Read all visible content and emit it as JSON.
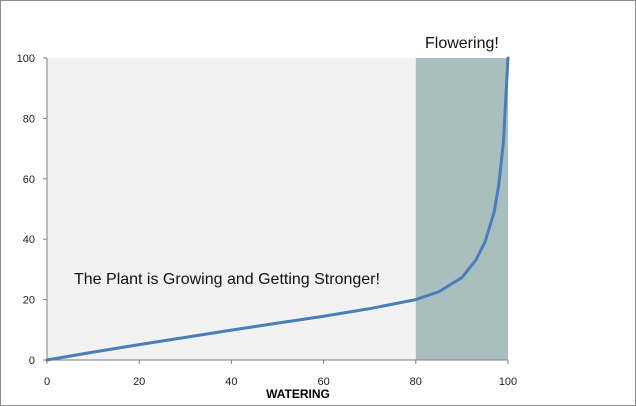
{
  "chart_data": {
    "type": "line",
    "title": "",
    "xlabel": "WATERING",
    "ylabel": "",
    "xlim": [
      0,
      100
    ],
    "ylim": [
      0,
      100
    ],
    "x_ticks": [
      0,
      20,
      40,
      60,
      80,
      100
    ],
    "y_ticks": [
      0,
      20,
      40,
      60,
      80,
      100
    ],
    "grid": false,
    "series": [
      {
        "color": "#4a7ebb",
        "x": [
          0,
          10,
          20,
          30,
          40,
          50,
          60,
          70,
          80,
          85,
          90,
          93,
          95,
          97,
          98,
          99,
          100
        ],
        "y": [
          0,
          2.6,
          5.1,
          7.5,
          9.9,
          12.2,
          14.5,
          17.0,
          20.0,
          22.6,
          27.3,
          33.0,
          39.0,
          49.0,
          58.0,
          72.0,
          100
        ]
      }
    ],
    "regions": [
      {
        "x_range": [
          0,
          80
        ],
        "color": "#f2f2f2",
        "label": "The Plant is Growing and Getting Stronger!"
      },
      {
        "x_range": [
          80,
          100
        ],
        "color": "#a9bfbf",
        "label": "Flowering!"
      }
    ]
  }
}
